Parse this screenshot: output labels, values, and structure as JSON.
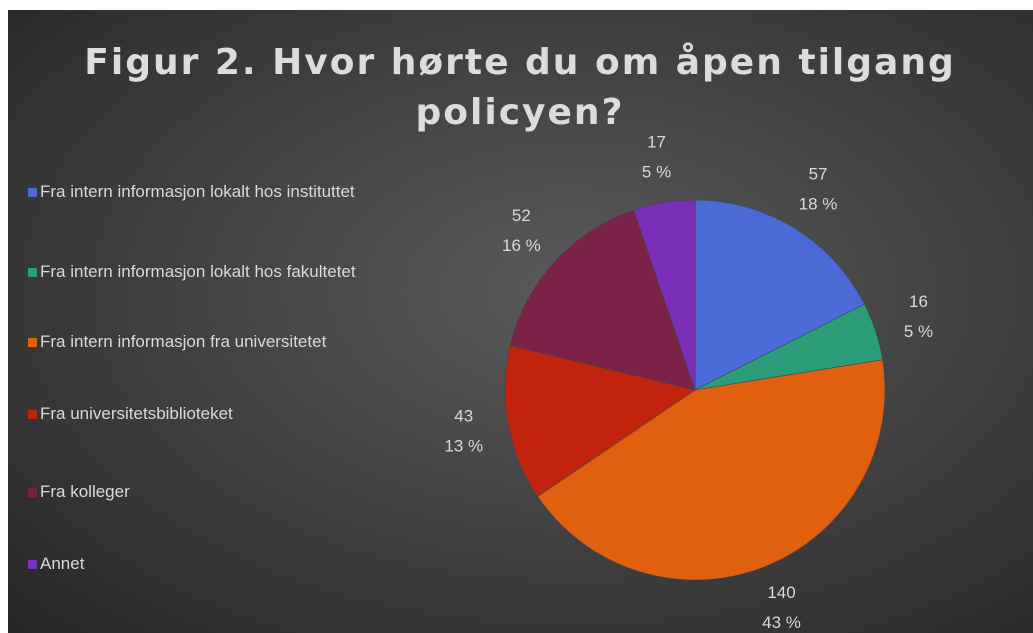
{
  "chart_data": {
    "type": "pie",
    "title": "Figur 2. Hvor hørte du om åpen tilgang policyen?",
    "categories": [
      "Fra intern informasjon lokalt hos instituttet",
      "Fra intern informasjon lokalt hos fakultetet",
      "Fra intern informasjon fra universitetet",
      "Fra universitetsbiblioteket",
      "Fra kolleger",
      "Annet"
    ],
    "values": [
      57,
      16,
      140,
      43,
      52,
      17
    ],
    "percent_labels": [
      "18 %",
      "5 %",
      "43 %",
      "13 %",
      "16 %",
      "5 %"
    ],
    "colors": [
      "#4a6ad6",
      "#2a9d78",
      "#e0600f",
      "#c2230c",
      "#7b2148",
      "#7a2fb8"
    ],
    "legend": "left"
  }
}
